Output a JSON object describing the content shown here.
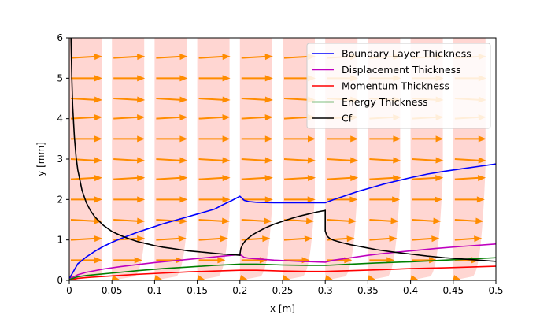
{
  "chart_data": {
    "type": "line",
    "xlabel": "x  [m]",
    "ylabel": "y  [mm]",
    "xlim": [
      0,
      0.5
    ],
    "ylim": [
      0,
      6
    ],
    "x_ticks": [
      0,
      0.05,
      0.1,
      0.15,
      0.2,
      0.25,
      0.3,
      0.35,
      0.4,
      0.45,
      0.5
    ],
    "x_tick_labels": [
      "0",
      "0.05",
      "0.1",
      "0.15",
      "0.2",
      "0.25",
      "0.3",
      "0.35",
      "0.4",
      "0.45",
      "0.5"
    ],
    "y_ticks": [
      0,
      1,
      2,
      3,
      4,
      5,
      6
    ],
    "y_tick_labels": [
      "0",
      "1",
      "2",
      "3",
      "4",
      "5",
      "6"
    ],
    "grid": false,
    "legend_placement": "upper-right",
    "velocity_field": {
      "stations_x": [
        0,
        0.05,
        0.1,
        0.15,
        0.2,
        0.25,
        0.3,
        0.35,
        0.4,
        0.45
      ],
      "arrow_y": [
        0.05,
        0.5,
        1.0,
        1.5,
        2.0,
        2.5,
        3.0,
        3.5,
        4.0,
        4.5,
        5.0,
        5.5
      ],
      "arrow_color": "#ff8c00",
      "profile_color": "#ffd6d2"
    },
    "series": [
      {
        "name": "Boundary Layer Thickness",
        "color": "#0000ff",
        "points": [
          [
            0,
            0.04
          ],
          [
            0.01,
            0.41
          ],
          [
            0.02,
            0.58
          ],
          [
            0.03,
            0.72
          ],
          [
            0.04,
            0.84
          ],
          [
            0.05,
            0.94
          ],
          [
            0.06,
            1.03
          ],
          [
            0.07,
            1.11
          ],
          [
            0.08,
            1.19
          ],
          [
            0.09,
            1.26
          ],
          [
            0.1,
            1.33
          ],
          [
            0.11,
            1.4
          ],
          [
            0.12,
            1.46
          ],
          [
            0.13,
            1.52
          ],
          [
            0.14,
            1.58
          ],
          [
            0.15,
            1.64
          ],
          [
            0.16,
            1.7
          ],
          [
            0.17,
            1.76
          ],
          [
            0.18,
            1.87
          ],
          [
            0.19,
            1.97
          ],
          [
            0.2,
            2.08
          ],
          [
            0.205,
            1.98
          ],
          [
            0.21,
            1.95
          ],
          [
            0.22,
            1.93
          ],
          [
            0.24,
            1.92
          ],
          [
            0.26,
            1.92
          ],
          [
            0.28,
            1.92
          ],
          [
            0.3,
            1.92
          ],
          [
            0.31,
            2.0
          ],
          [
            0.32,
            2.07
          ],
          [
            0.33,
            2.14
          ],
          [
            0.34,
            2.21
          ],
          [
            0.35,
            2.27
          ],
          [
            0.36,
            2.33
          ],
          [
            0.37,
            2.39
          ],
          [
            0.38,
            2.44
          ],
          [
            0.39,
            2.49
          ],
          [
            0.4,
            2.54
          ],
          [
            0.42,
            2.63
          ],
          [
            0.44,
            2.7
          ],
          [
            0.46,
            2.76
          ],
          [
            0.48,
            2.82
          ],
          [
            0.5,
            2.88
          ]
        ]
      },
      {
        "name": "Displacement Thickness",
        "color": "#bf00bf",
        "points": [
          [
            0,
            0.03
          ],
          [
            0.01,
            0.14
          ],
          [
            0.02,
            0.2
          ],
          [
            0.04,
            0.28
          ],
          [
            0.06,
            0.34
          ],
          [
            0.08,
            0.39
          ],
          [
            0.1,
            0.44
          ],
          [
            0.12,
            0.48
          ],
          [
            0.14,
            0.52
          ],
          [
            0.16,
            0.56
          ],
          [
            0.18,
            0.6
          ],
          [
            0.2,
            0.64
          ],
          [
            0.205,
            0.57
          ],
          [
            0.21,
            0.55
          ],
          [
            0.24,
            0.5
          ],
          [
            0.27,
            0.47
          ],
          [
            0.3,
            0.45
          ],
          [
            0.31,
            0.5
          ],
          [
            0.33,
            0.56
          ],
          [
            0.35,
            0.62
          ],
          [
            0.37,
            0.67
          ],
          [
            0.4,
            0.73
          ],
          [
            0.43,
            0.79
          ],
          [
            0.46,
            0.84
          ],
          [
            0.5,
            0.9
          ]
        ]
      },
      {
        "name": "Momentum Thickness",
        "color": "#ff0000",
        "points": [
          [
            0,
            0.01
          ],
          [
            0.01,
            0.05
          ],
          [
            0.02,
            0.07
          ],
          [
            0.05,
            0.11
          ],
          [
            0.08,
            0.15
          ],
          [
            0.11,
            0.18
          ],
          [
            0.14,
            0.21
          ],
          [
            0.17,
            0.23
          ],
          [
            0.2,
            0.25
          ],
          [
            0.22,
            0.25
          ],
          [
            0.25,
            0.23
          ],
          [
            0.28,
            0.22
          ],
          [
            0.3,
            0.22
          ],
          [
            0.33,
            0.24
          ],
          [
            0.36,
            0.26
          ],
          [
            0.4,
            0.29
          ],
          [
            0.44,
            0.31
          ],
          [
            0.47,
            0.33
          ],
          [
            0.5,
            0.35
          ]
        ]
      },
      {
        "name": "Energy Thickness",
        "color": "#008000",
        "points": [
          [
            0,
            0.02
          ],
          [
            0.01,
            0.09
          ],
          [
            0.02,
            0.12
          ],
          [
            0.05,
            0.18
          ],
          [
            0.08,
            0.24
          ],
          [
            0.11,
            0.29
          ],
          [
            0.14,
            0.33
          ],
          [
            0.17,
            0.37
          ],
          [
            0.2,
            0.4
          ],
          [
            0.22,
            0.4
          ],
          [
            0.25,
            0.38
          ],
          [
            0.28,
            0.37
          ],
          [
            0.3,
            0.37
          ],
          [
            0.33,
            0.4
          ],
          [
            0.36,
            0.43
          ],
          [
            0.4,
            0.46
          ],
          [
            0.44,
            0.5
          ],
          [
            0.47,
            0.53
          ],
          [
            0.5,
            0.56
          ]
        ]
      },
      {
        "name": "Cf",
        "color": "#000000",
        "points": [
          [
            0.002,
            6.0
          ],
          [
            0.003,
            5.0
          ],
          [
            0.004,
            4.3
          ],
          [
            0.006,
            3.55
          ],
          [
            0.008,
            3.05
          ],
          [
            0.01,
            2.73
          ],
          [
            0.015,
            2.22
          ],
          [
            0.02,
            1.92
          ],
          [
            0.025,
            1.72
          ],
          [
            0.03,
            1.57
          ],
          [
            0.04,
            1.36
          ],
          [
            0.05,
            1.21
          ],
          [
            0.06,
            1.11
          ],
          [
            0.07,
            1.03
          ],
          [
            0.08,
            0.96
          ],
          [
            0.09,
            0.91
          ],
          [
            0.1,
            0.86
          ],
          [
            0.11,
            0.82
          ],
          [
            0.12,
            0.79
          ],
          [
            0.13,
            0.76
          ],
          [
            0.14,
            0.73
          ],
          [
            0.15,
            0.71
          ],
          [
            0.16,
            0.69
          ],
          [
            0.17,
            0.67
          ],
          [
            0.18,
            0.65
          ],
          [
            0.19,
            0.64
          ],
          [
            0.2,
            0.62
          ],
          [
            0.2,
            0.64
          ],
          [
            0.201,
            0.78
          ],
          [
            0.203,
            0.88
          ],
          [
            0.206,
            0.97
          ],
          [
            0.21,
            1.05
          ],
          [
            0.215,
            1.13
          ],
          [
            0.22,
            1.19
          ],
          [
            0.23,
            1.3
          ],
          [
            0.24,
            1.39
          ],
          [
            0.25,
            1.46
          ],
          [
            0.26,
            1.53
          ],
          [
            0.27,
            1.59
          ],
          [
            0.28,
            1.64
          ],
          [
            0.29,
            1.69
          ],
          [
            0.3,
            1.73
          ],
          [
            0.3,
            1.22
          ],
          [
            0.302,
            1.1
          ],
          [
            0.305,
            1.04
          ],
          [
            0.31,
            0.99
          ],
          [
            0.32,
            0.93
          ],
          [
            0.33,
            0.88
          ],
          [
            0.34,
            0.84
          ],
          [
            0.35,
            0.8
          ],
          [
            0.36,
            0.76
          ],
          [
            0.38,
            0.7
          ],
          [
            0.4,
            0.65
          ],
          [
            0.42,
            0.6
          ],
          [
            0.44,
            0.56
          ],
          [
            0.46,
            0.53
          ],
          [
            0.48,
            0.5
          ],
          [
            0.5,
            0.47
          ]
        ]
      }
    ]
  }
}
